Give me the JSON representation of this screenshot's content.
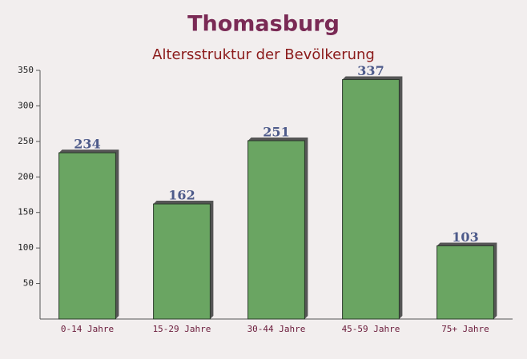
{
  "chart_data": {
    "type": "bar",
    "title": "Thomasburg",
    "subtitle": "Altersstruktur der Bevölkerung",
    "categories": [
      "0-14 Jahre",
      "15-29 Jahre",
      "30-44 Jahre",
      "45-59 Jahre",
      "75+ Jahre"
    ],
    "values": [
      234,
      162,
      251,
      337,
      103
    ],
    "color": "#6aa562",
    "ylim": [
      0,
      350
    ],
    "yticks": [
      50,
      100,
      150,
      200,
      250,
      300,
      350
    ],
    "grid": false
  }
}
